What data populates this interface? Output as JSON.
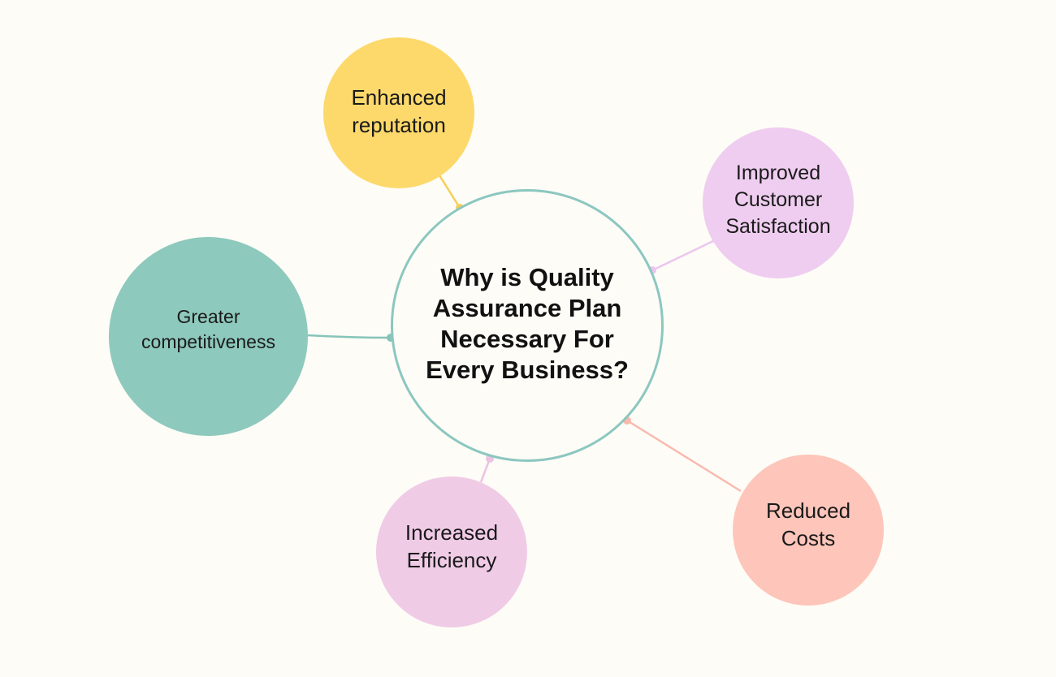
{
  "center": {
    "title": "Why is Quality Assurance Plan Necessary For Every Business?"
  },
  "nodes": {
    "reputation": {
      "label": "Enhanced reputation",
      "color": "#fdd96b",
      "connector_color": "#f6cf5a"
    },
    "satisfaction": {
      "label": "Improved Customer Satisfaction",
      "color": "#efcdf0",
      "connector_color": "#ebc6ef"
    },
    "competitiveness": {
      "label": "Greater competitiveness",
      "color": "#8ec9bd",
      "connector_color": "#86c4b9"
    },
    "efficiency": {
      "label": "Increased Efficiency",
      "color": "#f0cbe6",
      "connector_color": "#ecc3e2"
    },
    "costs": {
      "label": "Reduced Costs",
      "color": "#fec5ba",
      "connector_color": "#f9b9ad"
    }
  },
  "colors": {
    "background": "#fefcf6",
    "center_border": "#8cc7c0"
  }
}
